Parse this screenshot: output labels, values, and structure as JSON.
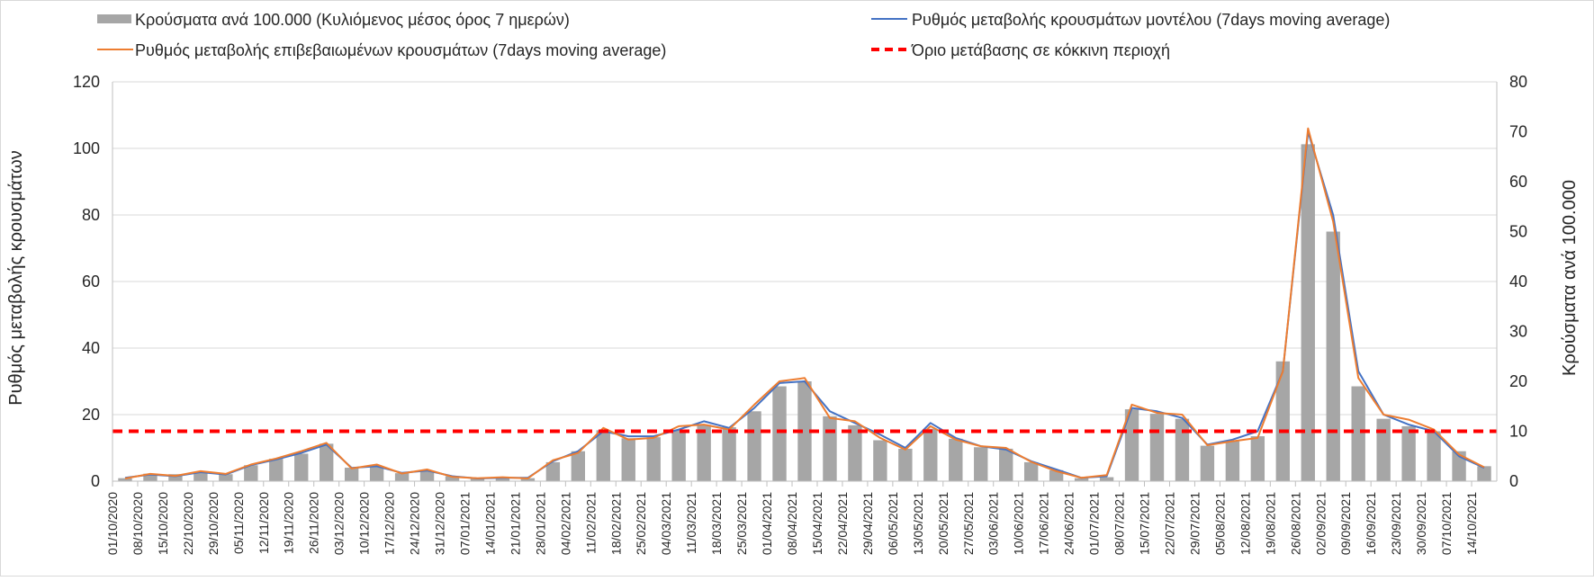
{
  "chart_data": {
    "type": "bar+line",
    "title": "",
    "x_dates": [
      "01/10/2020",
      "08/10/2020",
      "15/10/2020",
      "22/10/2020",
      "29/10/2020",
      "05/11/2020",
      "12/11/2020",
      "19/11/2020",
      "26/11/2020",
      "03/12/2020",
      "10/12/2020",
      "17/12/2020",
      "24/12/2020",
      "31/12/2020",
      "07/01/2021",
      "14/01/2021",
      "21/01/2021",
      "28/01/2021",
      "04/02/2021",
      "11/02/2021",
      "18/02/2021",
      "25/02/2021",
      "04/03/2021",
      "11/03/2021",
      "18/03/2021",
      "25/03/2021",
      "01/04/2021",
      "08/04/2021",
      "15/04/2021",
      "22/04/2021",
      "29/04/2021",
      "06/05/2021",
      "13/05/2021",
      "20/05/2021",
      "27/05/2021",
      "03/06/2021",
      "10/06/2021",
      "17/06/2021",
      "24/06/2021",
      "01/07/2021",
      "08/07/2021",
      "15/07/2021",
      "22/07/2021",
      "29/07/2021",
      "05/08/2021",
      "12/08/2021",
      "19/08/2021",
      "26/08/2021",
      "02/09/2021",
      "09/09/2021",
      "16/09/2021",
      "23/09/2021",
      "30/09/2021",
      "07/10/2021",
      "14/10/2021"
    ],
    "left_axis": {
      "label": "Ρυθμός μεταβολής κρουσμάτων",
      "min": 0,
      "max": 120,
      "ticks": [
        "0",
        "20",
        "40",
        "60",
        "80",
        "100",
        "120"
      ]
    },
    "right_axis": {
      "label": "Κρούσματα ανά 100.000",
      "min": 0,
      "max": 80,
      "ticks": [
        "0",
        "10",
        "20",
        "30",
        "40",
        "50",
        "60",
        "70",
        "80"
      ]
    },
    "grid": true,
    "legend_position": "top",
    "series": [
      {
        "name": "Κρούσματα ανά 100.000 (Κυλιόμενος μέσος όρος 7 ημερών)",
        "kind": "bar",
        "axis": "right",
        "color": "#a6a6a6",
        "values": [
          0.6,
          1.5,
          1.4,
          1.8,
          1.4,
          3.2,
          4.5,
          5.5,
          7.5,
          2.7,
          3.0,
          1.6,
          2.1,
          1.0,
          0.5,
          0.7,
          0.6,
          3.8,
          6.0,
          10.2,
          8.6,
          8.8,
          10.3,
          11.3,
          10.8,
          14.0,
          19.0,
          20.0,
          13.0,
          11.2,
          8.2,
          6.5,
          10.5,
          8.5,
          6.8,
          6.5,
          3.8,
          2.2,
          0.6,
          0.8,
          14.4,
          13.5,
          12.5,
          7.1,
          8.0,
          9.0,
          24.0,
          67.5,
          50.0,
          19.0,
          12.5,
          11.0,
          10.0,
          6.0,
          3.0
        ]
      },
      {
        "name": "Ρυθμός μεταβολής κρουσμάτων μοντέλου (7days moving average)",
        "kind": "line",
        "axis": "left",
        "color": "#4472c4",
        "values": [
          1.0,
          2.0,
          1.5,
          2.7,
          2.0,
          4.8,
          6.5,
          8.5,
          11.0,
          4.0,
          4.5,
          2.5,
          3.2,
          1.5,
          0.8,
          1.0,
          1.0,
          6.0,
          9.0,
          15.0,
          13.5,
          13.5,
          15.5,
          18.0,
          16.0,
          22.0,
          29.5,
          30.0,
          21.0,
          17.5,
          14.0,
          10.0,
          17.5,
          13.0,
          10.5,
          9.5,
          6.0,
          3.5,
          1.0,
          1.5,
          22.0,
          21.0,
          19.0,
          11.0,
          12.5,
          15.0,
          33.0,
          105.0,
          80.0,
          33.0,
          20.0,
          17.0,
          15.0,
          7.5,
          4.0
        ]
      },
      {
        "name": "Ρυθμός μεταβολής επιβεβαιωμένων κρουσμάτων (7days moving average)",
        "kind": "line",
        "axis": "left",
        "color": "#ed7d31",
        "values": [
          0.8,
          2.2,
          1.6,
          3.0,
          2.2,
          5.0,
          6.8,
          9.0,
          11.5,
          3.8,
          5.0,
          2.3,
          3.5,
          1.3,
          0.9,
          1.2,
          0.8,
          6.3,
          8.5,
          16.0,
          12.5,
          13.0,
          16.5,
          17.0,
          15.5,
          23.0,
          30.0,
          31.0,
          19.0,
          18.0,
          13.0,
          9.5,
          16.5,
          12.5,
          10.5,
          10.0,
          5.8,
          3.0,
          1.0,
          1.8,
          23.0,
          20.5,
          20.0,
          10.8,
          12.0,
          13.0,
          33.0,
          106.0,
          78.0,
          31.0,
          20.0,
          18.5,
          15.5,
          8.0,
          4.2
        ]
      },
      {
        "name": "Όριο μετάβασης σε κόκκινη περιοχή",
        "kind": "threshold",
        "axis": "right",
        "color": "#ff0000",
        "value": 10
      }
    ]
  }
}
